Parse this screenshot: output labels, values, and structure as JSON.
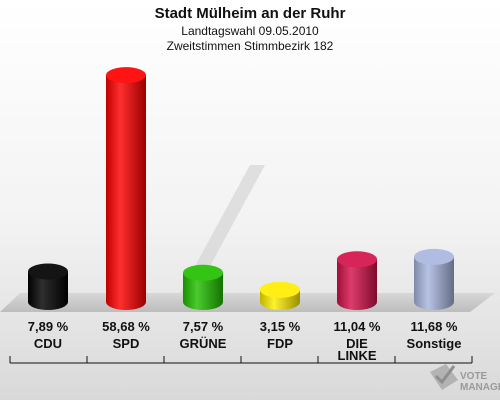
{
  "header": {
    "title": "Stadt Mülheim an der Ruhr",
    "subtitle1": "Landtagswahl 09.05.2010",
    "subtitle2": "Zweitstimmen Stimmbezirk 182"
  },
  "logo": {
    "line1": "VOTE",
    "line2": "MANAGER"
  },
  "chart_data": {
    "type": "bar",
    "title": "Stadt Mülheim an der Ruhr",
    "subtitle": [
      "Landtagswahl 09.05.2010",
      "Zweitstimmen Stimmbezirk 182"
    ],
    "unit": "%",
    "categories": [
      "CDU",
      "SPD",
      "GRÜNE",
      "FDP",
      "DIE LINKE",
      "Sonstige"
    ],
    "category_lines": [
      [
        "CDU"
      ],
      [
        "SPD"
      ],
      [
        "GRÜNE"
      ],
      [
        "FDP"
      ],
      [
        "DIE",
        "LINKE"
      ],
      [
        "Sonstige"
      ]
    ],
    "values": [
      7.89,
      58.68,
      7.57,
      3.15,
      11.04,
      11.68
    ],
    "value_labels": [
      "7,89 %",
      "58,68 %",
      "7,57 %",
      "3,15 %",
      "11,04 %",
      "11,68 %"
    ],
    "colors": [
      "#000000",
      "#ff0000",
      "#22c000",
      "#ffee00",
      "#d4124a",
      "#a9b6de"
    ],
    "ylim": [
      0,
      60
    ],
    "grid": false,
    "legend": "none"
  }
}
